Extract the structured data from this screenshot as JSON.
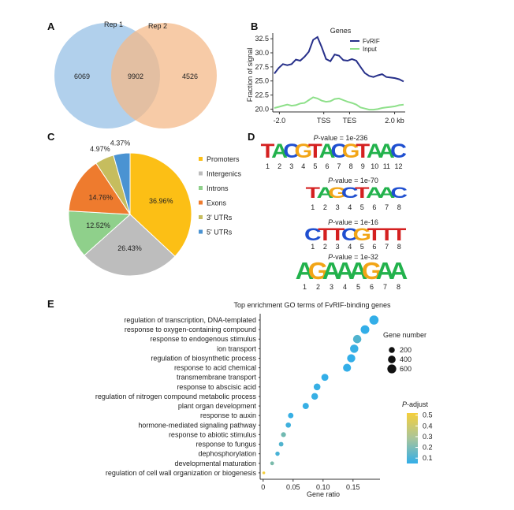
{
  "panels": {
    "A": "A",
    "B": "B",
    "C": "C",
    "D": "D",
    "E": "E"
  },
  "venn": {
    "set1": "Rep 1",
    "set2": "Rep 2",
    "only1": "6069",
    "both": "9902",
    "only2": "4526",
    "colors": {
      "set1": "#a9cbea",
      "set2": "#f4b98a"
    }
  },
  "chart_data": [
    {
      "type": "line",
      "title": "Genes",
      "ylabel": "Fraction of signal",
      "x_ticks": [
        "-2.0",
        "TSS",
        "TES",
        "2.0 kb"
      ],
      "y_ticks": [
        "20.0",
        "22.5",
        "25.0",
        "27.5",
        "30.0",
        "32.5"
      ],
      "ylim": [
        19.5,
        33.5
      ],
      "legend": "top-right",
      "series": [
        {
          "name": "FvRIF",
          "color": "#27308a",
          "values": [
            26.3,
            27.3,
            28.0,
            27.8,
            28.0,
            28.8,
            28.6,
            29.3,
            30.2,
            32.3,
            32.8,
            31.0,
            28.9,
            28.5,
            29.7,
            29.5,
            28.7,
            28.6,
            28.9,
            28.6,
            27.5,
            26.4,
            25.9,
            25.7,
            26.0,
            26.2,
            25.7,
            25.6,
            25.5,
            25.3,
            24.9
          ]
        },
        {
          "name": "Input",
          "color": "#8ee08a",
          "values": [
            20.2,
            20.4,
            20.6,
            20.8,
            20.6,
            20.7,
            21.0,
            21.1,
            21.6,
            22.1,
            21.9,
            21.5,
            21.3,
            21.4,
            21.8,
            21.9,
            21.6,
            21.3,
            21.1,
            20.8,
            20.3,
            20.1,
            19.9,
            19.9,
            20.0,
            20.2,
            20.3,
            20.4,
            20.5,
            20.7,
            20.8
          ]
        }
      ]
    },
    {
      "type": "pie",
      "categories": [
        "Promoters",
        "Intergenics",
        "Introns",
        "Exons",
        "3' UTRs",
        "5' UTRs"
      ],
      "values": [
        36.96,
        26.43,
        12.52,
        14.76,
        4.97,
        4.37
      ],
      "labels": [
        "36.96%",
        "26.43%",
        "12.52%",
        "14.76%",
        "4.97%",
        "4.37%"
      ],
      "colors": [
        "#fcbf15",
        "#bdbdbd",
        "#8fd08b",
        "#ee7b2e",
        "#c6bd5e",
        "#4a93d2"
      ],
      "legend": "right"
    },
    {
      "type": "scatter",
      "title": "Top enrichment GO terms of FvRIF-binding genes",
      "xlabel": "Gene ratio",
      "x_ticks": [
        "0",
        "0.05",
        "0.10",
        "0.15"
      ],
      "xlim": [
        -0.005,
        0.195
      ],
      "size_legend_title": "Gene number",
      "size_legend": [
        "200",
        "400",
        "600"
      ],
      "color_legend_title": "P-adjust",
      "color_legend_title_italic": "P",
      "color_legend_title_rest": "-adjust",
      "color_ticks": [
        "0.5",
        "0.4",
        "0.3",
        "0.2",
        "0.1"
      ],
      "color_scale": {
        "low": "#33aee8",
        "high": "#f5cf3c",
        "range": [
          0.05,
          0.52
        ]
      },
      "terms": [
        {
          "label": "regulation of transcription, DNA-templated",
          "ratio": 0.185,
          "count": 640,
          "padj": 0.05
        },
        {
          "label": "response to oxygen-containing compound",
          "ratio": 0.17,
          "count": 560,
          "padj": 0.05
        },
        {
          "label": "response to endogenous stimulus",
          "ratio": 0.157,
          "count": 500,
          "padj": 0.12
        },
        {
          "label": "ion transport",
          "ratio": 0.152,
          "count": 500,
          "padj": 0.06
        },
        {
          "label": "regulation of biosynthetic process",
          "ratio": 0.147,
          "count": 480,
          "padj": 0.05
        },
        {
          "label": "response to acid chemical",
          "ratio": 0.14,
          "count": 450,
          "padj": 0.05
        },
        {
          "label": "transmembrane transport",
          "ratio": 0.103,
          "count": 320,
          "padj": 0.05
        },
        {
          "label": "response to abscisic acid",
          "ratio": 0.09,
          "count": 290,
          "padj": 0.06
        },
        {
          "label": "regulation of nitrogen compound metabolic process",
          "ratio": 0.086,
          "count": 280,
          "padj": 0.06
        },
        {
          "label": "plant organ development",
          "ratio": 0.071,
          "count": 230,
          "padj": 0.06
        },
        {
          "label": "response to auxin",
          "ratio": 0.046,
          "count": 150,
          "padj": 0.06
        },
        {
          "label": "hormone-mediated signaling pathway",
          "ratio": 0.042,
          "count": 140,
          "padj": 0.08
        },
        {
          "label": "response to abiotic stimulus",
          "ratio": 0.034,
          "count": 110,
          "padj": 0.2
        },
        {
          "label": "response to fungus",
          "ratio": 0.03,
          "count": 90,
          "padj": 0.12
        },
        {
          "label": "dephosphorylation",
          "ratio": 0.024,
          "count": 70,
          "padj": 0.1
        },
        {
          "label": "developmental maturation",
          "ratio": 0.015,
          "count": 45,
          "padj": 0.22
        },
        {
          "label": "regulation of cell wall organization or biogenesis",
          "ratio": 0.001,
          "count": 10,
          "padj": 0.52
        }
      ]
    }
  ],
  "motifs": [
    {
      "pvalue_italic": "P",
      "pvalue_rest": "-value = 1e-236",
      "seq": "TACGTACGTAAC",
      "positions": [
        "1",
        "2",
        "3",
        "4",
        "5",
        "6",
        "7",
        "8",
        "9",
        "10",
        "11",
        "12"
      ]
    },
    {
      "pvalue_italic": "P",
      "pvalue_rest": "-value = 1e-70",
      "seq": "TAGCTAAC",
      "positions": [
        "1",
        "2",
        "3",
        "4",
        "5",
        "6",
        "7",
        "8"
      ]
    },
    {
      "pvalue_italic": "P",
      "pvalue_rest": "-value = 1e-16",
      "seq": "CTTCGTTT",
      "positions": [
        "1",
        "2",
        "3",
        "4",
        "5",
        "6",
        "7",
        "8"
      ]
    },
    {
      "pvalue_italic": "P",
      "pvalue_rest": "-value = 1e-32",
      "seq": "AGAAAGAA",
      "positions": [
        "1",
        "2",
        "3",
        "4",
        "5",
        "6",
        "7",
        "8"
      ]
    }
  ],
  "base_colors": {
    "A": "#22b24c",
    "C": "#1f4fd0",
    "G": "#f2a516",
    "T": "#d42020"
  }
}
